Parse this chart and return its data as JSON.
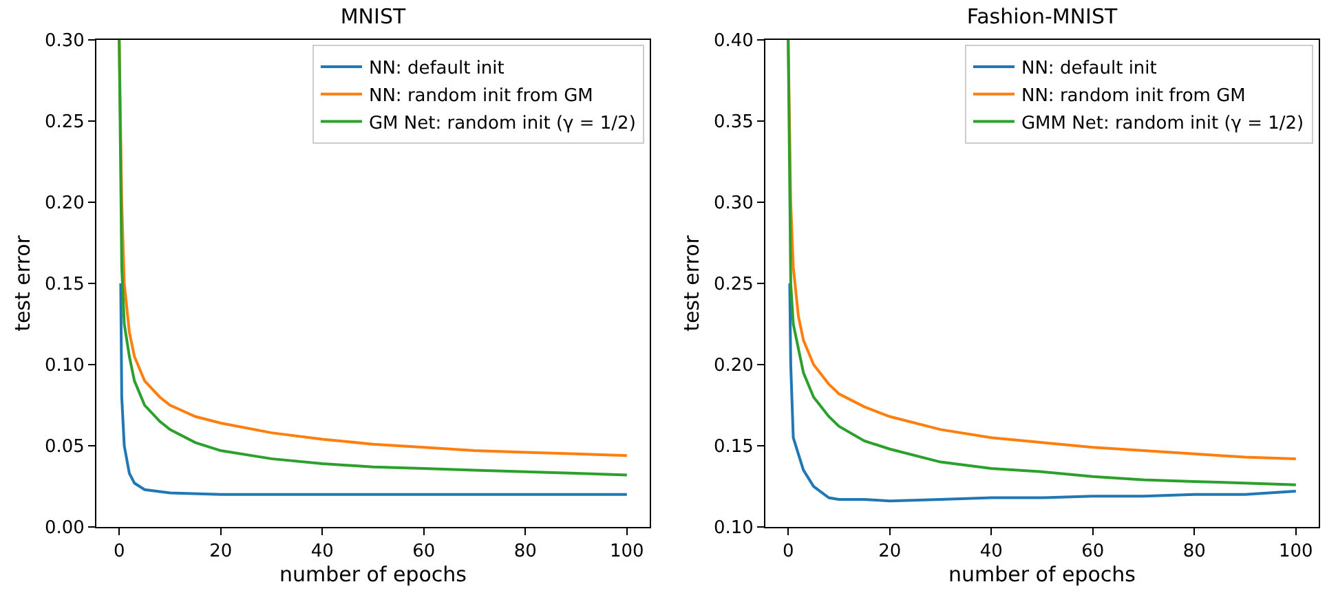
{
  "chart_data": [
    {
      "type": "line",
      "title": "MNIST",
      "xlabel": "number of epochs",
      "ylabel": "test error",
      "xlim": [
        -4.5,
        104.5
      ],
      "xticks": [
        0,
        20,
        40,
        60,
        80,
        100
      ],
      "ylim": [
        0,
        0.3
      ],
      "yticks": [
        {
          "value": 0,
          "label": "0.00"
        },
        {
          "value": 0.05,
          "label": "0.05"
        },
        {
          "value": 0.1,
          "label": "0.10"
        },
        {
          "value": 0.15,
          "label": "0.15"
        },
        {
          "value": 0.2,
          "label": "0.20"
        },
        {
          "value": 0.25,
          "label": "0.25"
        },
        {
          "value": 0.3,
          "label": "0.30"
        }
      ],
      "grid": false,
      "legend": "top right",
      "line_style": "solid",
      "marker": "none",
      "series": [
        {
          "name": "NN: default init",
          "color": "#1f77b4",
          "x": [
            0.3,
            0.5,
            1,
            2,
            3,
            5,
            10,
            20,
            40,
            60,
            80,
            100
          ],
          "values": [
            0.15,
            0.08,
            0.05,
            0.033,
            0.027,
            0.023,
            0.021,
            0.02,
            0.02,
            0.02,
            0.02,
            0.02
          ]
        },
        {
          "name": "NN: random init from GM",
          "color": "#ff7f0e",
          "x": [
            0,
            0.5,
            1,
            2,
            3,
            5,
            8,
            10,
            15,
            20,
            30,
            40,
            50,
            60,
            70,
            80,
            90,
            100
          ],
          "values": [
            0.3,
            0.2,
            0.15,
            0.12,
            0.105,
            0.09,
            0.08,
            0.075,
            0.068,
            0.064,
            0.058,
            0.054,
            0.051,
            0.049,
            0.047,
            0.046,
            0.045,
            0.044
          ]
        },
        {
          "name": "GM Net: random init (γ = 1/2)",
          "color": "#2ca02c",
          "x": [
            0,
            0.5,
            1,
            2,
            3,
            5,
            8,
            10,
            15,
            20,
            30,
            40,
            50,
            60,
            70,
            80,
            90,
            100
          ],
          "values": [
            0.3,
            0.16,
            0.125,
            0.105,
            0.09,
            0.075,
            0.065,
            0.06,
            0.052,
            0.047,
            0.042,
            0.039,
            0.037,
            0.036,
            0.035,
            0.034,
            0.033,
            0.032
          ]
        }
      ]
    },
    {
      "type": "line",
      "title": "Fashion-MNIST",
      "xlabel": "number of epochs",
      "ylabel": "test error",
      "xlim": [
        -4.5,
        104.5
      ],
      "xticks": [
        0,
        20,
        40,
        60,
        80,
        100
      ],
      "ylim": [
        0.1,
        0.4
      ],
      "yticks": [
        {
          "value": 0.1,
          "label": "0.10"
        },
        {
          "value": 0.15,
          "label": "0.15"
        },
        {
          "value": 0.2,
          "label": "0.20"
        },
        {
          "value": 0.25,
          "label": "0.25"
        },
        {
          "value": 0.3,
          "label": "0.30"
        },
        {
          "value": 0.35,
          "label": "0.35"
        },
        {
          "value": 0.4,
          "label": "0.40"
        }
      ],
      "grid": false,
      "legend": "top right",
      "line_style": "solid",
      "marker": "none",
      "series": [
        {
          "name": "NN: default init",
          "color": "#1f77b4",
          "x": [
            0.3,
            0.5,
            1,
            2,
            3,
            5,
            8,
            10,
            15,
            20,
            30,
            40,
            50,
            60,
            70,
            80,
            90,
            100
          ],
          "values": [
            0.25,
            0.2,
            0.155,
            0.145,
            0.135,
            0.125,
            0.118,
            0.117,
            0.117,
            0.116,
            0.117,
            0.118,
            0.118,
            0.119,
            0.119,
            0.12,
            0.12,
            0.122
          ]
        },
        {
          "name": "NN: random init from GM",
          "color": "#ff7f0e",
          "x": [
            0,
            0.5,
            1,
            2,
            3,
            5,
            8,
            10,
            15,
            20,
            30,
            40,
            50,
            60,
            70,
            80,
            90,
            100
          ],
          "values": [
            0.4,
            0.3,
            0.26,
            0.23,
            0.215,
            0.2,
            0.188,
            0.182,
            0.174,
            0.168,
            0.16,
            0.155,
            0.152,
            0.149,
            0.147,
            0.145,
            0.143,
            0.142
          ]
        },
        {
          "name": "GMM Net: random init (γ = 1/2)",
          "color": "#2ca02c",
          "x": [
            0,
            0.5,
            1,
            2,
            3,
            5,
            8,
            10,
            15,
            20,
            30,
            40,
            50,
            60,
            70,
            80,
            90,
            100
          ],
          "values": [
            0.4,
            0.25,
            0.225,
            0.21,
            0.195,
            0.18,
            0.168,
            0.162,
            0.153,
            0.148,
            0.14,
            0.136,
            0.134,
            0.131,
            0.129,
            0.128,
            0.127,
            0.126
          ]
        }
      ]
    }
  ]
}
